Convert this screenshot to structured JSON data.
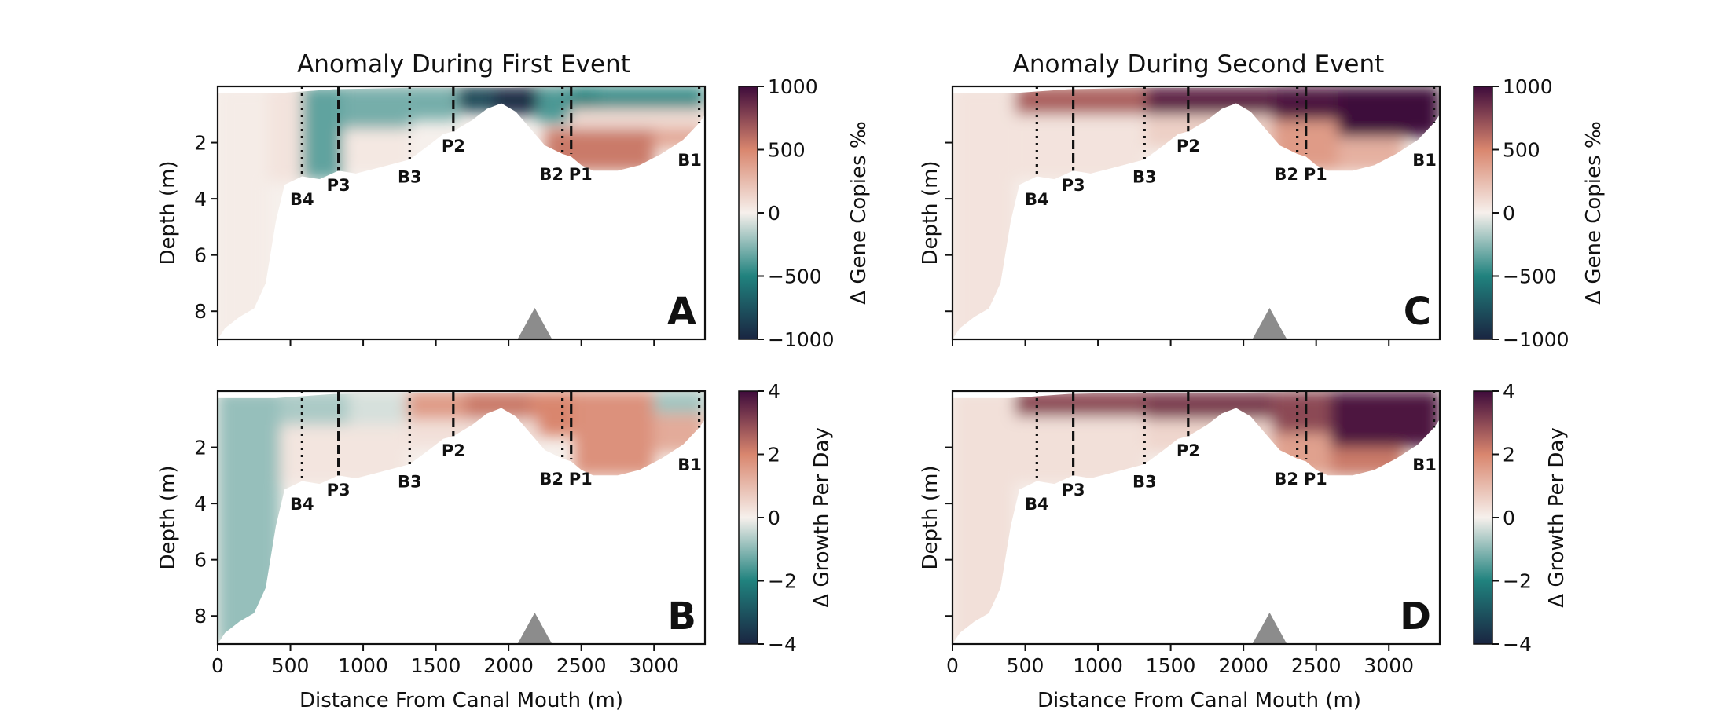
{
  "chart_data": [
    {
      "type": "heatmap",
      "panel": "A",
      "title": "Anomaly During First Event",
      "xlabel": "",
      "ylabel": "Depth (m)",
      "xlim": [
        0,
        3350
      ],
      "ylim": [
        9,
        0
      ],
      "yticks": [
        2,
        4,
        6,
        8
      ],
      "colorbar": {
        "label": "Δ Gene Copies ‰",
        "range": [
          -1000,
          1000
        ],
        "ticks": [
          1000,
          500,
          0,
          -500,
          -1000
        ],
        "tick_labels": [
          "1000",
          "500",
          "0",
          "−500",
          "−1000"
        ]
      },
      "scale_max": 1000,
      "cells": [
        [
          0,
          350,
          0,
          9,
          20
        ],
        [
          350,
          580,
          0,
          3.4,
          60
        ],
        [
          580,
          860,
          0,
          3.3,
          -350
        ],
        [
          860,
          1330,
          0,
          1.5,
          -300
        ],
        [
          860,
          1330,
          1.5,
          3,
          40
        ],
        [
          1330,
          1650,
          0,
          1.2,
          -300
        ],
        [
          1650,
          1900,
          0,
          0.9,
          -800
        ],
        [
          1900,
          2200,
          0,
          1.0,
          -950
        ],
        [
          2200,
          2420,
          0,
          1.3,
          -400
        ],
        [
          2420,
          2620,
          0,
          1.0,
          -500
        ],
        [
          2620,
          3350,
          0,
          0.8,
          -450
        ],
        [
          2420,
          3350,
          0.8,
          1.5,
          100
        ],
        [
          2250,
          3000,
          1.5,
          3,
          550
        ],
        [
          3000,
          3350,
          1.5,
          2.2,
          350
        ]
      ]
    },
    {
      "type": "heatmap",
      "panel": "B",
      "title": "",
      "xlabel": "Distance From Canal Mouth (m)",
      "ylabel": "Depth (m)",
      "xlim": [
        0,
        3350
      ],
      "ylim": [
        9,
        0
      ],
      "xticks": [
        0,
        500,
        1000,
        1500,
        2000,
        2500,
        3000
      ],
      "yticks": [
        2,
        4,
        6,
        8
      ],
      "colorbar": {
        "label": "Δ Growth Per Day",
        "range": [
          -4,
          4
        ],
        "ticks": [
          4,
          2,
          0,
          -2,
          -4
        ],
        "tick_labels": [
          "4",
          "2",
          "0",
          "−2",
          "−4"
        ]
      },
      "scale_max": 4,
      "cells": [
        [
          0,
          430,
          0,
          9,
          -0.9
        ],
        [
          430,
          900,
          0,
          1.2,
          -0.7
        ],
        [
          430,
          1300,
          1.2,
          3.3,
          0.2
        ],
        [
          900,
          1300,
          0,
          1.2,
          -0.3
        ],
        [
          1300,
          1700,
          0,
          1.0,
          1.6
        ],
        [
          1700,
          2150,
          0,
          1.0,
          2.2
        ],
        [
          2150,
          2450,
          0,
          1.6,
          2.0
        ],
        [
          2450,
          3000,
          0,
          3,
          1.8
        ],
        [
          3000,
          3350,
          0,
          0.8,
          -0.8
        ],
        [
          3000,
          3350,
          0.8,
          2.2,
          1.3
        ],
        [
          1300,
          2200,
          1.0,
          2,
          0.3
        ]
      ]
    },
    {
      "type": "heatmap",
      "panel": "C",
      "title": "Anomaly During Second Event",
      "xlabel": "",
      "ylabel": "Depth (m)",
      "xlim": [
        0,
        3350
      ],
      "ylim": [
        9,
        0
      ],
      "yticks": [
        2,
        4,
        6,
        8
      ],
      "colorbar": {
        "label": "Δ Gene Copies ‰",
        "range": [
          -1000,
          1000
        ],
        "ticks": [
          1000,
          500,
          0,
          -500,
          -1000
        ],
        "tick_labels": [
          "1000",
          "500",
          "0",
          "−500",
          "−1000"
        ]
      },
      "scale_max": 1000,
      "cells": [
        [
          0,
          430,
          0,
          9,
          60
        ],
        [
          430,
          1330,
          0,
          1.0,
          650
        ],
        [
          430,
          1330,
          1.0,
          3.3,
          60
        ],
        [
          1330,
          2200,
          0,
          1.0,
          900
        ],
        [
          1330,
          2200,
          1.0,
          2.2,
          150
        ],
        [
          2200,
          2650,
          0,
          1.2,
          950
        ],
        [
          2200,
          2650,
          1.2,
          3,
          400
        ],
        [
          2650,
          3350,
          0,
          1.8,
          1000
        ],
        [
          2650,
          3100,
          1.8,
          3,
          300
        ]
      ]
    },
    {
      "type": "heatmap",
      "panel": "D",
      "title": "",
      "xlabel": "Distance From Canal Mouth (m)",
      "ylabel": "Depth (m)",
      "xlim": [
        0,
        3350
      ],
      "ylim": [
        9,
        0
      ],
      "xticks": [
        0,
        500,
        1000,
        1500,
        2000,
        2500,
        3000
      ],
      "yticks": [
        2,
        4,
        6,
        8
      ],
      "colorbar": {
        "label": "Δ Growth Per Day",
        "range": [
          -4,
          4
        ],
        "ticks": [
          4,
          2,
          0,
          -2,
          -4
        ],
        "tick_labels": [
          "4",
          "2",
          "0",
          "−2",
          "−4"
        ]
      },
      "scale_max": 4,
      "cells": [
        [
          0,
          430,
          0,
          9,
          0.3
        ],
        [
          430,
          1330,
          0,
          0.9,
          3.0
        ],
        [
          430,
          1330,
          0.9,
          3.3,
          0.3
        ],
        [
          1330,
          2200,
          0,
          1.0,
          3.2
        ],
        [
          1330,
          2200,
          1.0,
          2.2,
          0.5
        ],
        [
          2200,
          2600,
          0,
          1.5,
          3.0
        ],
        [
          2200,
          2600,
          1.5,
          3,
          1.5
        ],
        [
          2600,
          3350,
          0,
          2.0,
          3.8
        ],
        [
          2600,
          3100,
          2.0,
          3,
          2.2
        ]
      ]
    }
  ],
  "stations": [
    {
      "label": "B4",
      "x": 580,
      "style": "dotted",
      "bottom": 3.2,
      "label_depth": 4
    },
    {
      "label": "P3",
      "x": 830,
      "style": "dashed",
      "bottom": 3.0,
      "label_depth": 3.5
    },
    {
      "label": "B3",
      "x": 1320,
      "style": "dotted",
      "bottom": 2.6,
      "label_depth": 3.2
    },
    {
      "label": "P2",
      "x": 1620,
      "style": "dashed",
      "bottom": 1.6,
      "label_depth": 2.1
    },
    {
      "label": "B2",
      "x": 2370,
      "style": "dotted",
      "bottom": 2.4,
      "label_depth": 3.1
    },
    {
      "label": "P1",
      "x": 2430,
      "style": "dashed",
      "bottom": 2.4,
      "label_depth": 3.1
    },
    {
      "label": "B1",
      "x": 3310,
      "style": "dotted",
      "bottom": 1.3,
      "label_depth": 2.6
    }
  ],
  "bathymetry": [
    [
      0,
      9.0
    ],
    [
      50,
      8.6
    ],
    [
      150,
      8.2
    ],
    [
      250,
      7.9
    ],
    [
      330,
      7.0
    ],
    [
      400,
      4.8
    ],
    [
      460,
      3.5
    ],
    [
      580,
      3.2
    ],
    [
      700,
      3.3
    ],
    [
      830,
      3.0
    ],
    [
      950,
      3.1
    ],
    [
      1100,
      2.9
    ],
    [
      1320,
      2.6
    ],
    [
      1450,
      2.1
    ],
    [
      1550,
      1.7
    ],
    [
      1620,
      1.6
    ],
    [
      1750,
      1.2
    ],
    [
      1850,
      0.8
    ],
    [
      1950,
      0.6
    ],
    [
      2050,
      0.9
    ],
    [
      2150,
      1.5
    ],
    [
      2250,
      2.1
    ],
    [
      2370,
      2.4
    ],
    [
      2430,
      2.5
    ],
    [
      2500,
      2.8
    ],
    [
      2580,
      3.0
    ],
    [
      2750,
      3.0
    ],
    [
      2900,
      2.8
    ],
    [
      3050,
      2.4
    ],
    [
      3200,
      1.9
    ],
    [
      3310,
      1.3
    ],
    [
      3350,
      1.0
    ]
  ],
  "surface": [
    [
      0,
      0.25
    ],
    [
      400,
      0.25
    ],
    [
      800,
      0.1
    ],
    [
      1300,
      0.05
    ],
    [
      2000,
      0.05
    ],
    [
      2500,
      0.02
    ],
    [
      3350,
      0
    ]
  ],
  "marker_x": 2180
}
